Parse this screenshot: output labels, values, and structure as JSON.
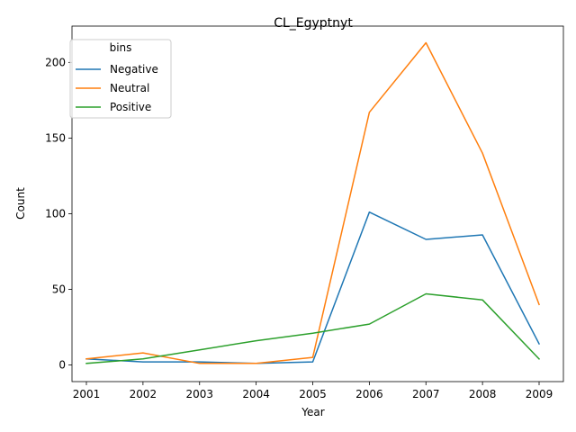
{
  "chart_data": {
    "type": "line",
    "title": "CL_Egyptnyt",
    "xlabel": "Year",
    "ylabel": "Count",
    "x": [
      "2001",
      "2002",
      "2003",
      "2004",
      "2005",
      "2006",
      "2007",
      "2008",
      "2009"
    ],
    "yticks": [
      0,
      50,
      100,
      150,
      200
    ],
    "ylim": [
      -11,
      224
    ],
    "grid": false,
    "legend": {
      "title": "bins",
      "placement": "top-left"
    },
    "series": [
      {
        "name": "Negative",
        "color": "#1f77b4",
        "values": [
          4,
          2,
          2,
          1,
          2,
          101,
          83,
          86,
          14
        ]
      },
      {
        "name": "Neutral",
        "color": "#ff7f0e",
        "values": [
          4,
          8,
          1,
          1,
          5,
          167,
          213,
          140,
          40
        ]
      },
      {
        "name": "Positive",
        "color": "#2ca02c",
        "values": [
          1,
          4,
          10,
          16,
          21,
          27,
          47,
          43,
          4
        ]
      }
    ]
  }
}
